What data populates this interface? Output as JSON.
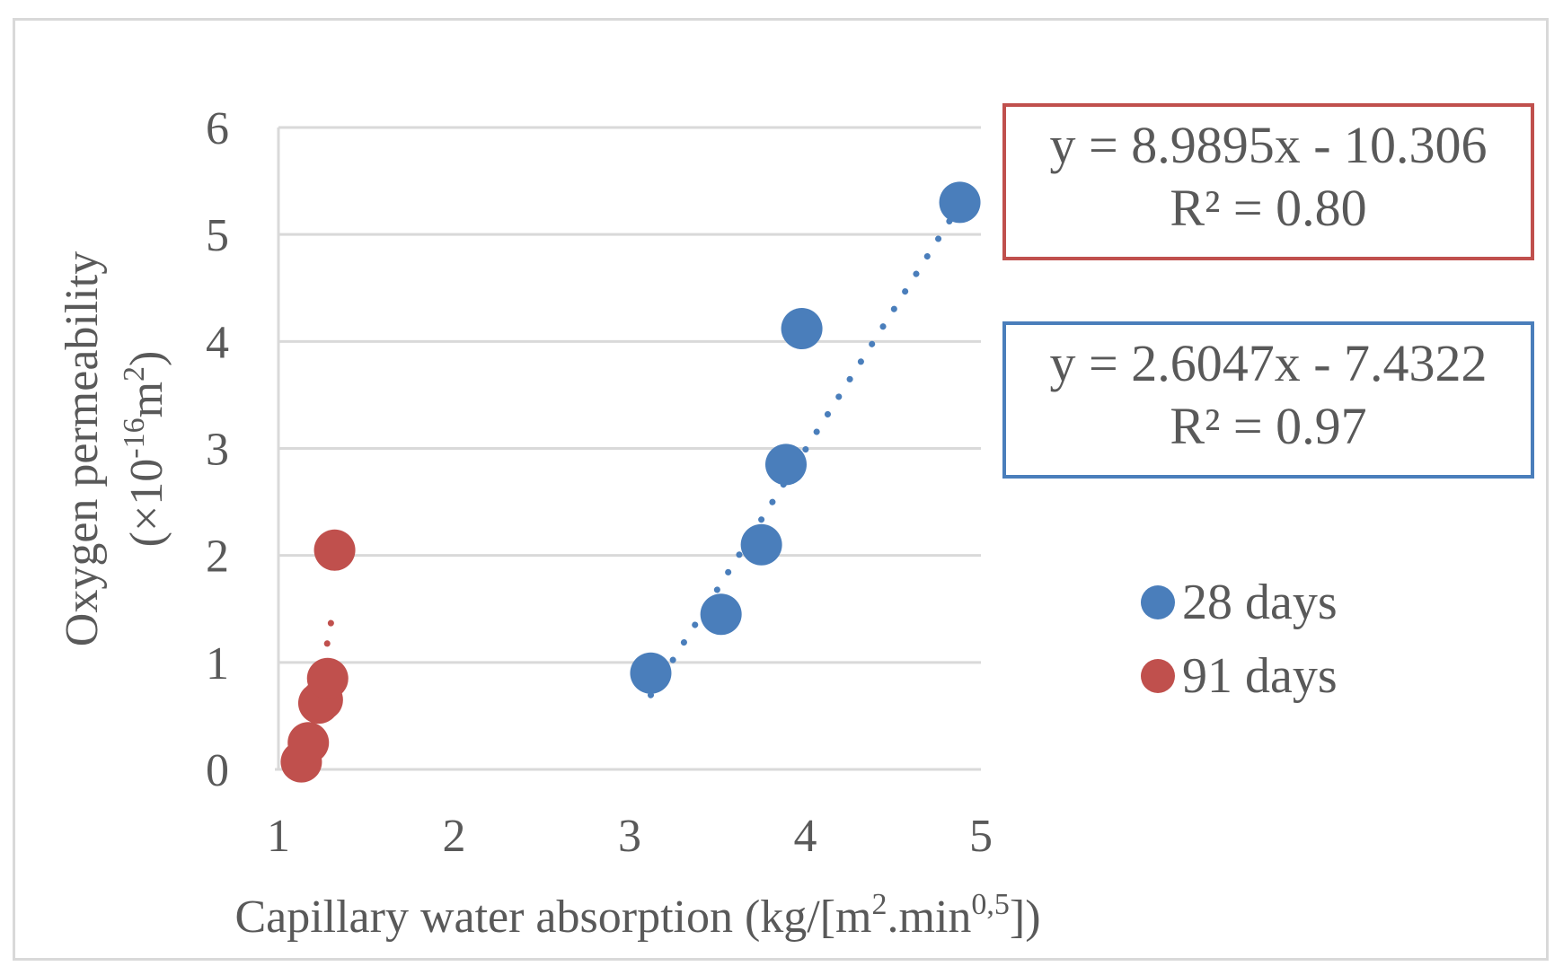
{
  "chart_data": {
    "type": "scatter",
    "title": "",
    "xlabel": "Capillary water absorption (kg/[m2.min0,5])",
    "xlabel_parts": {
      "pre": "Capillary water absorption (kg/[m",
      "sup1": "2",
      "mid": ".min",
      "sup2": "0,5",
      "post": "])"
    },
    "ylabel_line1": "Oxygen permeability",
    "ylabel_line2_parts": {
      "pre": "(×10",
      "sup": "-16",
      "mid": "m",
      "sup2": "2",
      "post": ")"
    },
    "xlim": [
      1,
      5
    ],
    "ylim": [
      0,
      6
    ],
    "xticks": [
      "1",
      "2",
      "3",
      "4",
      "5"
    ],
    "yticks": [
      "0",
      "1",
      "2",
      "3",
      "4",
      "5",
      "6"
    ],
    "grid": true,
    "legend_position": "right",
    "series": [
      {
        "name": "28 days",
        "color": "#4a7ebb",
        "points": [
          {
            "x": 3.12,
            "y": 0.9
          },
          {
            "x": 3.52,
            "y": 1.45
          },
          {
            "x": 3.75,
            "y": 2.1
          },
          {
            "x": 3.89,
            "y": 2.85
          },
          {
            "x": 3.98,
            "y": 4.12
          },
          {
            "x": 4.88,
            "y": 5.3
          }
        ],
        "trendline": {
          "slope": 2.6047,
          "intercept": -7.4322,
          "x_range": [
            3.12,
            4.88
          ],
          "equation": "y = 2.6047x - 7.4322",
          "r2": "R² = 0.97"
        }
      },
      {
        "name": "91 days",
        "color": "#c0504d",
        "points": [
          {
            "x": 1.13,
            "y": 0.07
          },
          {
            "x": 1.17,
            "y": 0.25
          },
          {
            "x": 1.23,
            "y": 0.62
          },
          {
            "x": 1.25,
            "y": 0.65
          },
          {
            "x": 1.28,
            "y": 0.85
          },
          {
            "x": 1.32,
            "y": 2.05
          }
        ],
        "trendline": {
          "slope": 8.9895,
          "intercept": -10.306,
          "x_range": [
            1.15,
            1.3
          ],
          "equation": "y = 8.9895x - 10.306",
          "r2": "R² = 0.80"
        }
      }
    ]
  },
  "equations": {
    "red": {
      "line1": "y = 8.9895x - 10.306",
      "line2": "R² = 0.80",
      "border_color": "#c0504d"
    },
    "blue": {
      "line1": "y = 2.6047x - 7.4322",
      "line2": "R² = 0.97",
      "border_color": "#4a7ebb"
    }
  },
  "legend": [
    {
      "label": "28 days",
      "color": "#4a7ebb"
    },
    {
      "label": "91 days",
      "color": "#c0504d"
    }
  ],
  "colors": {
    "text": "#595959",
    "grid": "#d9d9d9"
  }
}
